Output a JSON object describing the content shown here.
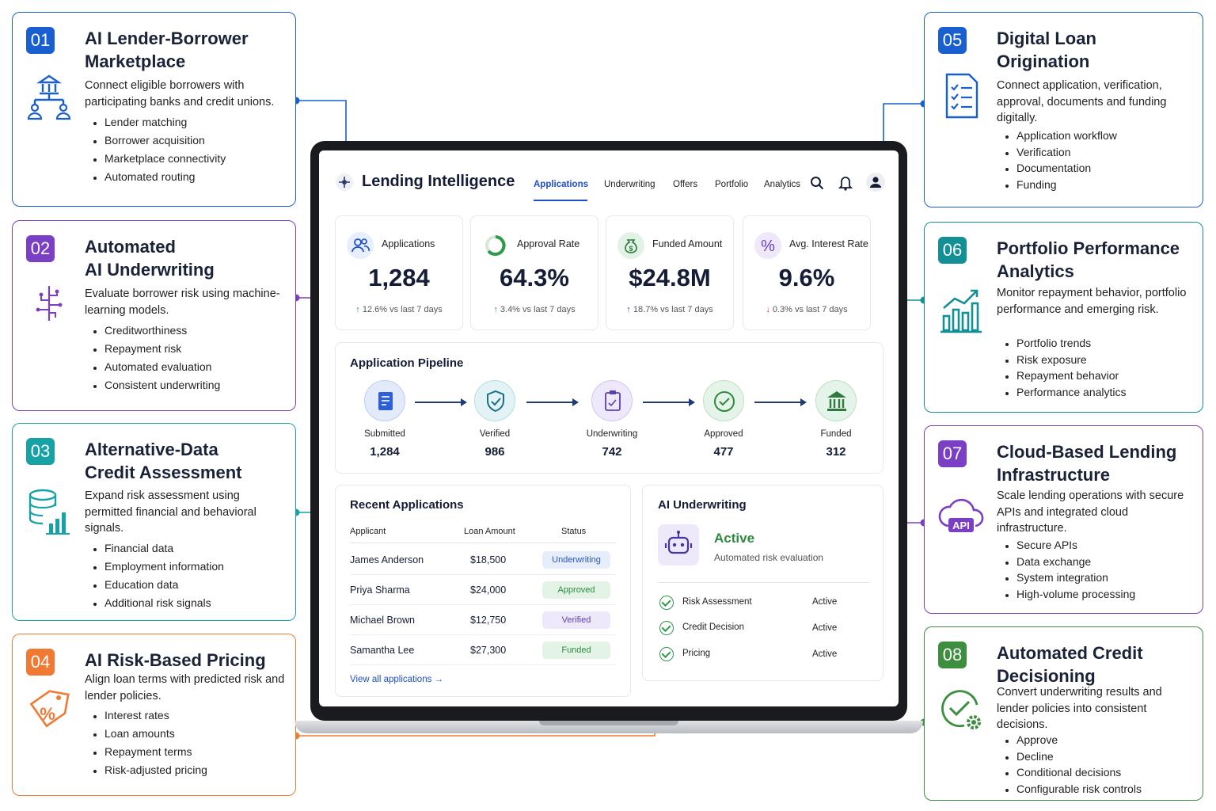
{
  "cards": [
    {
      "num": "01",
      "title": "AI Lender-Borrower\nMarketplace",
      "desc": "Connect eligible borrowers with participating banks and credit unions.",
      "bullets": [
        "Lender matching",
        "Borrower acquisition",
        "Marketplace connectivity",
        "Automated routing"
      ],
      "color": "#1a5fd1",
      "icon": "bank-network-icon"
    },
    {
      "num": "02",
      "title": "Automated\nAI Underwriting",
      "desc": "Evaluate borrower risk using machine-learning models.",
      "bullets": [
        "Creditworthiness",
        "Repayment risk",
        "Automated evaluation",
        "Consistent underwriting"
      ],
      "color": "#7a3fc4",
      "icon": "brain-circuit-icon"
    },
    {
      "num": "03",
      "title": "Alternative-Data\nCredit Assessment",
      "desc": "Expand risk assessment using permitted financial and behavioral signals.",
      "bullets": [
        "Financial data",
        "Employment information",
        "Education data",
        "Additional risk signals"
      ],
      "color": "#17a2a6",
      "icon": "database-chart-icon"
    },
    {
      "num": "04",
      "title": "AI Risk-Based Pricing",
      "desc": "Align loan terms with predicted risk and lender policies.",
      "bullets": [
        "Interest rates",
        "Loan amounts",
        "Repayment terms",
        "Risk-adjusted pricing"
      ],
      "color": "#f07a33",
      "icon": "percent-tag-icon"
    },
    {
      "num": "05",
      "title": "Digital Loan\nOrigination",
      "desc": "Connect application, verification, approval, documents and funding digitally.",
      "bullets": [
        "Application workflow",
        "Verification",
        "Documentation",
        "Funding"
      ],
      "color": "#1a5fd1",
      "icon": "checklist-icon"
    },
    {
      "num": "06",
      "title": "Portfolio Performance\nAnalytics",
      "desc": "Monitor repayment behavior, portfolio performance and emerging risk.",
      "bullets": [
        "Portfolio trends",
        "Risk exposure",
        "Repayment behavior",
        "Performance analytics"
      ],
      "color": "#138f96",
      "icon": "bar-chart-icon"
    },
    {
      "num": "07",
      "title": "Cloud-Based Lending\nInfrastructure",
      "desc": "Scale lending operations with secure APIs and integrated cloud infrastructure.",
      "bullets": [
        "Secure APIs",
        "Data exchange",
        "System integration",
        "High-volume processing"
      ],
      "color": "#7a3fc4",
      "icon": "cloud-api-icon"
    },
    {
      "num": "08",
      "title": "Automated Credit\nDecisioning",
      "desc": "Convert underwriting results and lender policies into consistent decisions.",
      "bullets": [
        "Approve",
        "Decline",
        "Conditional decisions",
        "Configurable risk controls"
      ],
      "color": "#3d8f3f",
      "icon": "check-gear-icon"
    }
  ],
  "app": {
    "brand": "Lending Intelligence",
    "nav": [
      "Applications",
      "Underwriting",
      "Offers",
      "Portfolio",
      "Analytics"
    ],
    "kpis": [
      {
        "label": "Applications",
        "value": "1,284",
        "change": "12.6% vs last 7 days",
        "dir": "up"
      },
      {
        "label": "Approval Rate",
        "value": "64.3%",
        "change": "3.4% vs last 7 days",
        "dir": "up"
      },
      {
        "label": "Funded Amount",
        "value": "$24.8M",
        "change": "18.7% vs last 7 days",
        "dir": "up"
      },
      {
        "label": "Avg. Interest Rate",
        "value": "9.6%",
        "change": "0.3% vs last 7 days",
        "dir": "down"
      }
    ],
    "pipeline": {
      "title": "Application Pipeline",
      "stages": [
        {
          "label": "Submitted",
          "value": "1,284"
        },
        {
          "label": "Verified",
          "value": "986"
        },
        {
          "label": "Underwriting",
          "value": "742"
        },
        {
          "label": "Approved",
          "value": "477"
        },
        {
          "label": "Funded",
          "value": "312"
        }
      ]
    },
    "recent": {
      "title": "Recent Applications",
      "headers": [
        "Applicant",
        "Loan Amount",
        "Status"
      ],
      "rows": [
        {
          "name": "James Anderson",
          "amount": "$18,500",
          "status": "Underwriting"
        },
        {
          "name": "Priya Sharma",
          "amount": "$24,000",
          "status": "Approved"
        },
        {
          "name": "Michael Brown",
          "amount": "$12,750",
          "status": "Verified"
        },
        {
          "name": "Samantha Lee",
          "amount": "$27,300",
          "status": "Funded"
        }
      ],
      "link": "View all applications"
    },
    "ai": {
      "title": "AI Underwriting",
      "status": "Active",
      "sub": "Automated risk evaluation",
      "items": [
        {
          "label": "Risk Assessment",
          "state": "Active"
        },
        {
          "label": "Credit Decision",
          "state": "Active"
        },
        {
          "label": "Pricing",
          "state": "Active"
        }
      ]
    }
  }
}
